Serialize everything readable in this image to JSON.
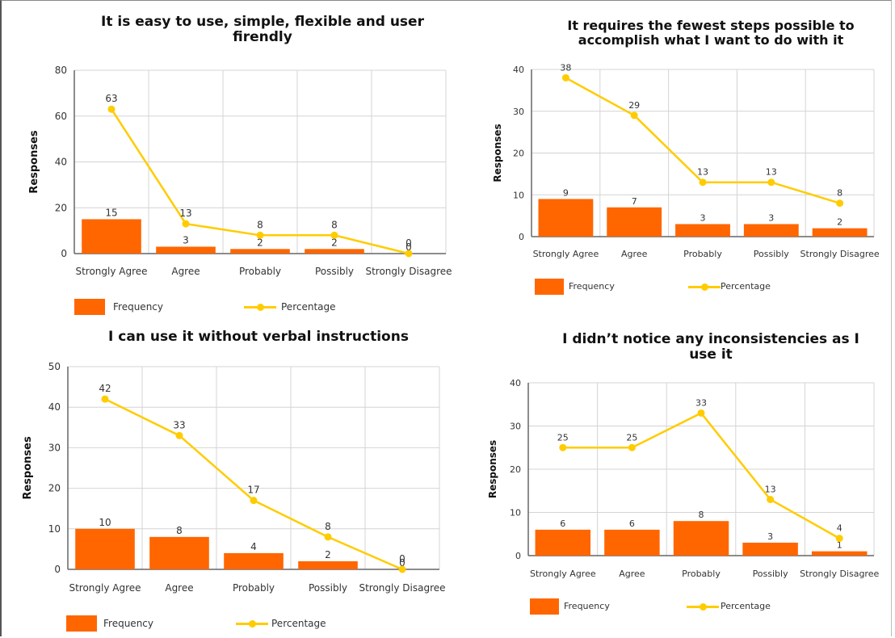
{
  "colors": {
    "frequency": "#ff6600",
    "percentage": "#ffcc00",
    "grid": "#d4d4d4",
    "axis": "#666666"
  },
  "legend": {
    "frequency_label": "Frequency",
    "percentage_label": "Percentage"
  },
  "chart_data": [
    {
      "type": "bar",
      "title": "It is easy to use, simple, flexible and user firendly",
      "ylabel": "Responses",
      "xlabel": "",
      "categories": [
        "Strongly Agree",
        "Agree",
        "Probably",
        "Possibly",
        "Strongly Disagree"
      ],
      "ylim": [
        0,
        80
      ],
      "yticks": [
        0,
        20,
        40,
        60,
        80
      ],
      "grid": true,
      "legend_position": "bottom-left",
      "series": [
        {
          "name": "Frequency",
          "kind": "bar",
          "values": [
            15,
            3,
            2,
            2,
            0
          ]
        },
        {
          "name": "Percentage",
          "kind": "line",
          "values": [
            63,
            13,
            8,
            8,
            0
          ]
        }
      ]
    },
    {
      "type": "bar",
      "title": "It requires the fewest steps possible to accomplish what I want to do with it",
      "ylabel": "Responses",
      "xlabel": "",
      "categories": [
        "Strongly Agree",
        "Agree",
        "Probably",
        "Possibly",
        "Strongly Disagree"
      ],
      "ylim": [
        0,
        40
      ],
      "yticks": [
        0,
        10,
        20,
        30,
        40
      ],
      "grid": true,
      "legend_position": "bottom-left",
      "series": [
        {
          "name": "Frequency",
          "kind": "bar",
          "values": [
            9,
            7,
            3,
            3,
            2
          ]
        },
        {
          "name": "Percentage",
          "kind": "line",
          "values": [
            38,
            29,
            13,
            13,
            8
          ]
        }
      ]
    },
    {
      "type": "bar",
      "title": "I can use it without verbal instructions",
      "ylabel": "Responses",
      "xlabel": "",
      "categories": [
        "Strongly Agree",
        "Agree",
        "Probably",
        "Possibly",
        "Strongly Disagree"
      ],
      "ylim": [
        0,
        50
      ],
      "yticks": [
        0,
        10,
        20,
        30,
        40,
        50
      ],
      "grid": true,
      "legend_position": "bottom-left",
      "series": [
        {
          "name": "Frequency",
          "kind": "bar",
          "values": [
            10,
            8,
            4,
            2,
            0
          ]
        },
        {
          "name": "Percentage",
          "kind": "line",
          "values": [
            42,
            33,
            17,
            8,
            0
          ]
        }
      ]
    },
    {
      "type": "bar",
      "title": "I didn’t notice any inconsistencies as I use it",
      "ylabel": "Responses",
      "xlabel": "",
      "categories": [
        "Strongly Agree",
        "Agree",
        "Probably",
        "Possibly",
        "Strongly Disagree"
      ],
      "ylim": [
        0,
        40
      ],
      "yticks": [
        0,
        10,
        20,
        30,
        40
      ],
      "grid": true,
      "legend_position": "bottom-left",
      "series": [
        {
          "name": "Frequency",
          "kind": "bar",
          "values": [
            6,
            6,
            8,
            3,
            1
          ]
        },
        {
          "name": "Percentage",
          "kind": "line",
          "values": [
            25,
            25,
            33,
            13,
            4
          ]
        }
      ]
    }
  ]
}
